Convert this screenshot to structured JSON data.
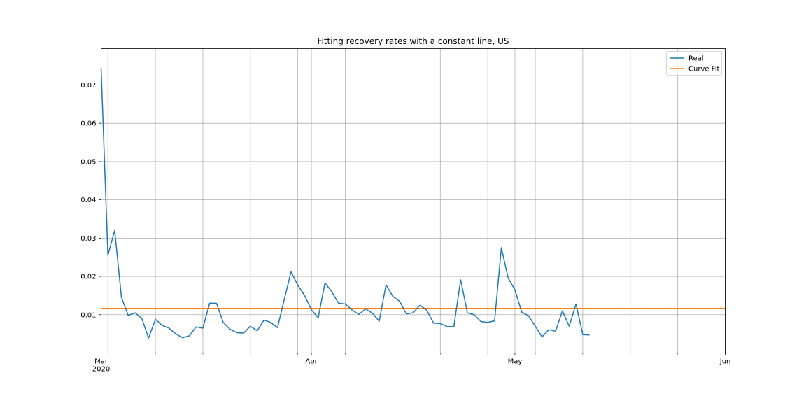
{
  "chart_data": {
    "type": "line",
    "title": "Fitting recovery rates with a constant line, US",
    "xlabel": "",
    "ylabel": "",
    "x_start": "2020-03-01",
    "xlim": [
      "2020-03-01",
      "2020-06-01"
    ],
    "ylim": [
      0,
      0.0795
    ],
    "yticks": [
      0.01,
      0.02,
      0.03,
      0.04,
      0.05,
      0.06,
      0.07
    ],
    "ytick_labels": [
      "0.01",
      "0.02",
      "0.03",
      "0.04",
      "0.05",
      "0.06",
      "0.07"
    ],
    "xticks": [
      {
        "date": "2020-03-01",
        "label": "Mar",
        "sublabel": "2020"
      },
      {
        "date": "2020-04-01",
        "label": "Apr",
        "sublabel": ""
      },
      {
        "date": "2020-05-01",
        "label": "May",
        "sublabel": ""
      },
      {
        "date": "2020-06-01",
        "label": "Jun",
        "sublabel": ""
      }
    ],
    "minor_xticks": [
      "2020-03-02",
      "2020-03-09",
      "2020-03-16",
      "2020-03-23",
      "2020-03-30",
      "2020-04-06",
      "2020-04-13",
      "2020-04-20",
      "2020-04-27",
      "2020-05-04",
      "2020-05-11",
      "2020-05-18",
      "2020-05-25"
    ],
    "grid": true,
    "legend_position": "top-right",
    "series": [
      {
        "name": "Real",
        "color": "#1f77b4",
        "values": [
          0.0745,
          0.0255,
          0.032,
          0.0145,
          0.0098,
          0.0105,
          0.009,
          0.0039,
          0.0088,
          0.0072,
          0.0065,
          0.005,
          0.004,
          0.0045,
          0.0068,
          0.0065,
          0.013,
          0.013,
          0.008,
          0.0062,
          0.0053,
          0.0052,
          0.007,
          0.0058,
          0.0086,
          0.008,
          0.0066,
          0.014,
          0.0212,
          0.0177,
          0.015,
          0.0113,
          0.0092,
          0.0183,
          0.016,
          0.013,
          0.0128,
          0.0112,
          0.0101,
          0.0115,
          0.0104,
          0.0083,
          0.0178,
          0.0148,
          0.0135,
          0.0102,
          0.0105,
          0.0125,
          0.0112,
          0.0078,
          0.0077,
          0.0069,
          0.0069,
          0.0191,
          0.0105,
          0.01,
          0.0082,
          0.008,
          0.0084,
          0.0275,
          0.0196,
          0.0165,
          0.0107,
          0.0097,
          0.007,
          0.0042,
          0.0061,
          0.0057,
          0.011,
          0.007,
          0.0128,
          0.0048,
          0.0047
        ]
      },
      {
        "name": "Curve Fit",
        "color": "#ff7f0e",
        "constant": 0.01165
      }
    ]
  }
}
